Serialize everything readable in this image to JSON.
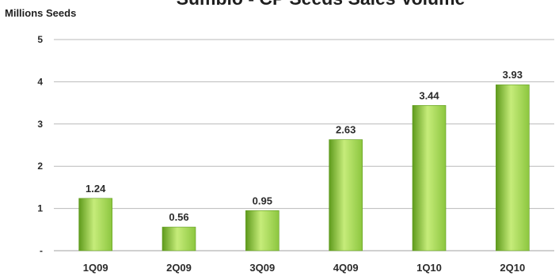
{
  "chart_data": {
    "type": "bar",
    "title": "Sumbio - CP Seeds Sales Volume",
    "ylabel": "Millions Seeds",
    "xlabel": "",
    "categories": [
      "1Q09",
      "2Q09",
      "3Q09",
      "4Q09",
      "1Q10",
      "2Q10"
    ],
    "values": [
      1.24,
      0.56,
      0.95,
      2.63,
      3.44,
      3.93
    ],
    "data_labels": [
      "1.24",
      "0.56",
      "0.95",
      "2.63",
      "3.44",
      "3.93"
    ],
    "ylim": [
      0,
      5
    ],
    "y_ticks": [
      0,
      1,
      2,
      3,
      4,
      5
    ],
    "y_tick_labels": [
      "-",
      "1",
      "2",
      "3",
      "4",
      "5"
    ],
    "grid": true,
    "bar_color": "#8cc63f",
    "bar_color_light": "#c6ec7a",
    "bar_color_dark": "#5e9a1c"
  }
}
